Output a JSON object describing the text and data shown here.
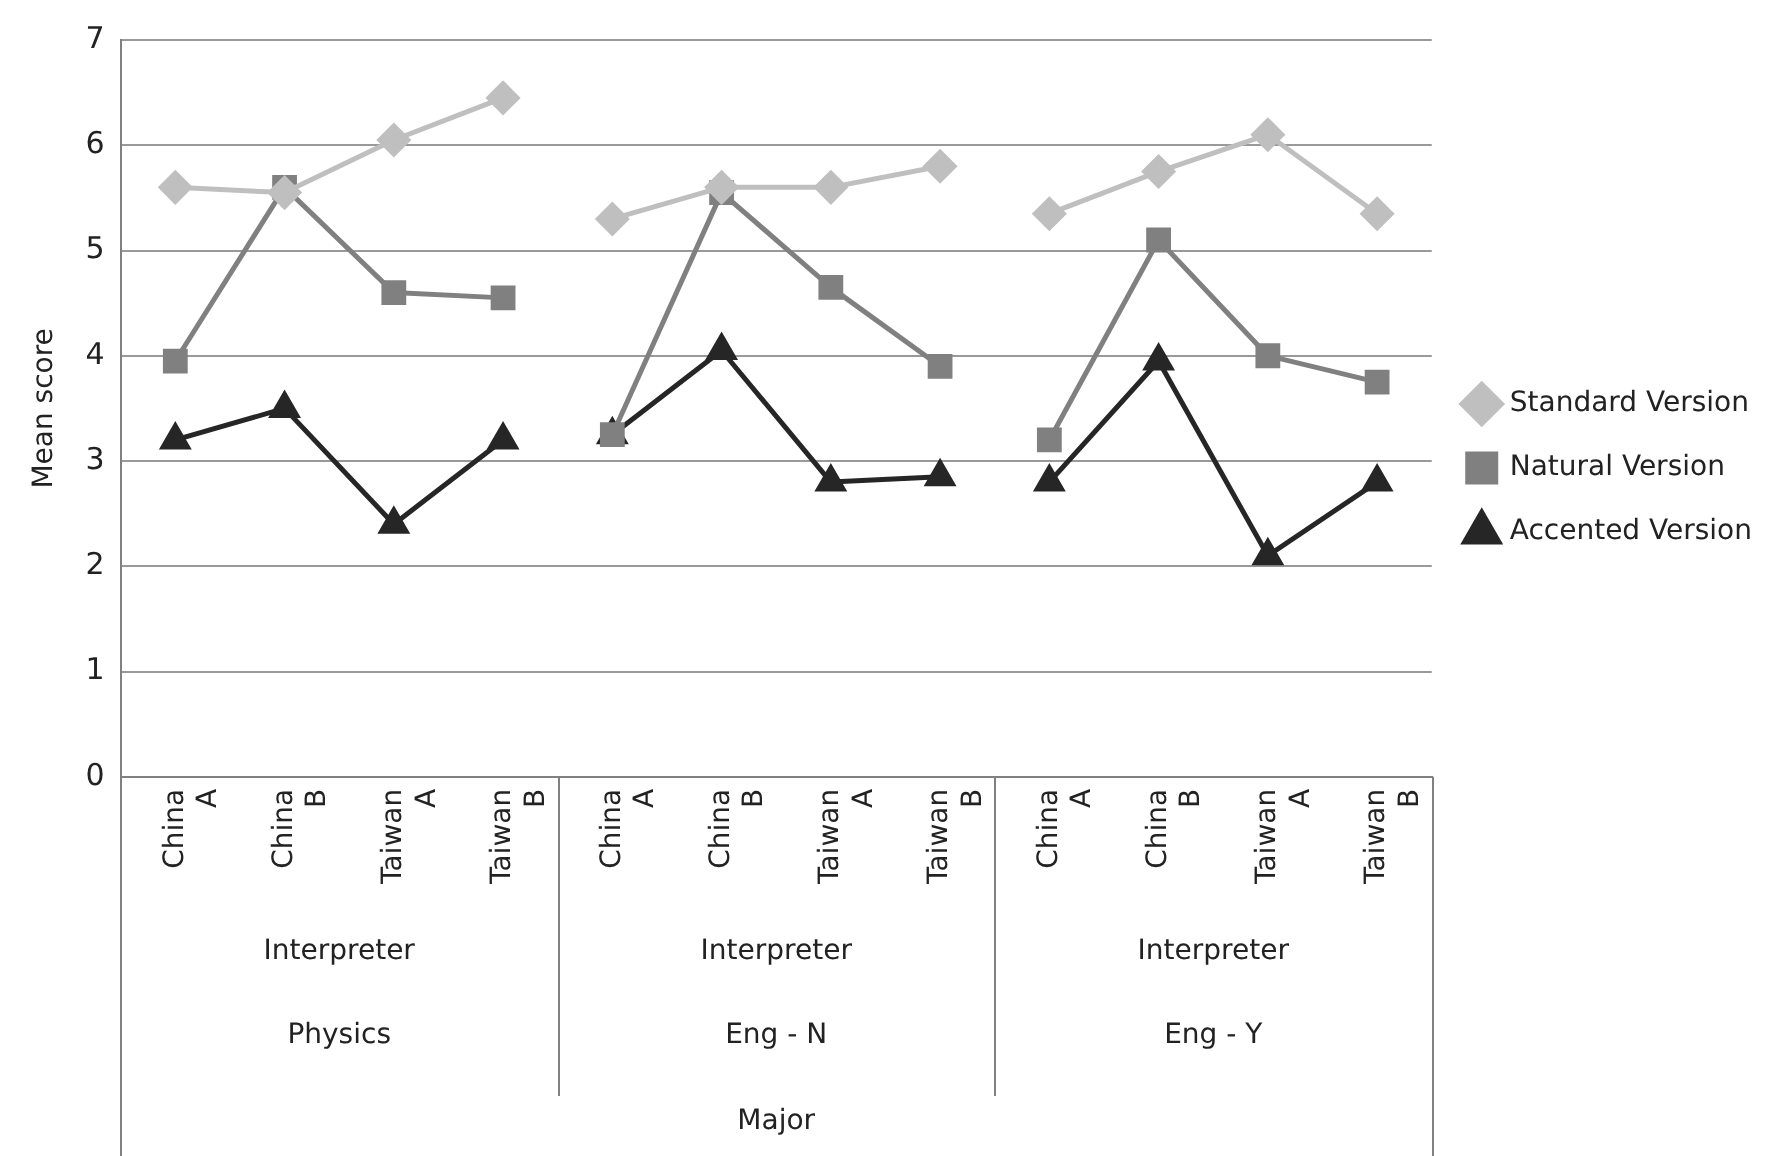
{
  "chart_data": {
    "type": "line",
    "ylabel": "Mean score",
    "categories": [
      "China A",
      "China B",
      "Taiwan A",
      "Taiwan B",
      "China A",
      "China B",
      "Taiwan A",
      "Taiwan B",
      "China A",
      "China B",
      "Taiwan A",
      "Taiwan B"
    ],
    "annotations": [
      "Interpreter",
      "Physics",
      "Interpreter",
      "Eng - N",
      "Interpreter",
      "Eng - Y",
      "Major"
    ],
    "series": [
      {
        "name": "Standard Version",
        "color": "#bfbfbf",
        "marker": "diamond",
        "values": [
          5.6,
          5.55,
          6.05,
          6.45,
          5.3,
          5.6,
          5.6,
          5.8,
          5.35,
          5.75,
          6.1,
          5.35
        ]
      },
      {
        "name": "Natural Version",
        "color": "#808080",
        "marker": "square",
        "values": [
          3.95,
          5.6,
          4.6,
          4.55,
          3.25,
          5.55,
          4.65,
          3.9,
          3.2,
          5.1,
          4.0,
          3.75
        ]
      },
      {
        "name": "Accented Version",
        "color": "#262626",
        "marker": "triangle",
        "values": [
          3.2,
          3.5,
          2.4,
          3.2,
          3.25,
          4.05,
          2.8,
          2.85,
          2.8,
          3.95,
          2.1,
          2.8
        ]
      }
    ],
    "ylim": [
      0,
      7
    ],
    "yticks": [
      0,
      1,
      2,
      3,
      4,
      5,
      6,
      7
    ],
    "grid": "y",
    "legend": "right",
    "line_style": "solid"
  }
}
